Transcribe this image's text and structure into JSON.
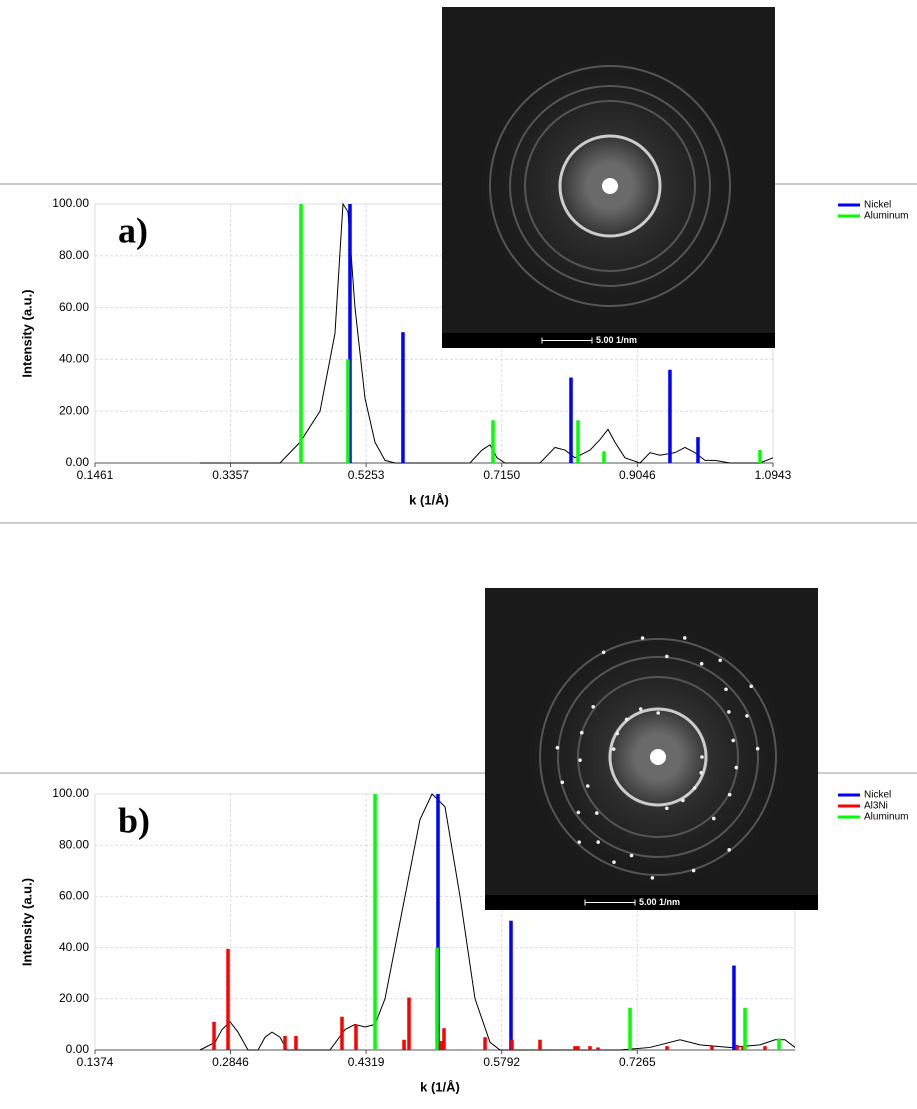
{
  "chart_data": [
    {
      "type": "bar",
      "panel_label": "a)",
      "xlabel": "k (1/Å)",
      "ylabel": "Intensity (a.u.)",
      "xlim": [
        0.1461,
        1.0943
      ],
      "ylim": [
        0,
        100
      ],
      "xticks": [
        0.1461,
        0.3357,
        0.5253,
        {
          "value": 0.715,
          "label": "0.7150"
        },
        0.9046,
        1.0943
      ],
      "yticks": [
        {
          "value": 0,
          "label": "0.00"
        },
        {
          "value": 20,
          "label": "20.00"
        },
        {
          "value": 40,
          "label": "40.00"
        },
        {
          "value": 60,
          "label": "60.00"
        },
        {
          "value": 80,
          "label": "80.00"
        },
        {
          "value": 100,
          "label": "100.00"
        }
      ],
      "grid": true,
      "legend": "upper right",
      "series": [
        {
          "name": "Nickel",
          "color": "#0000ff",
          "x": [
            0.5027,
            0.5768,
            0.8118,
            0.9502,
            0.9894
          ],
          "values": [
            100,
            50.5,
            33,
            36,
            10
          ]
        },
        {
          "name": "Aluminum",
          "color": "#00ff00",
          "x": [
            0.4342,
            0.4999,
            0.7027,
            0.8216,
            0.8579,
            1.0761
          ],
          "values": [
            100,
            40,
            16.5,
            16.5,
            4.5,
            5
          ]
        }
      ],
      "profile": {
        "color": "#000000",
        "x": [
          0.2929,
          0.4048,
          0.4328,
          0.4608,
          0.4817,
          0.4929,
          0.4999,
          0.5097,
          0.5237,
          0.5377,
          0.5517,
          0.5657,
          0.6705,
          0.6873,
          0.6985,
          0.7083,
          0.7195,
          0.7684,
          0.7894,
          0.8034,
          0.8174,
          0.8384,
          0.8523,
          0.8635,
          0.8733,
          0.8873,
          0.9083,
          0.9223,
          0.9362,
          0.9572,
          0.9712,
          0.9852,
          0.9992,
          1.0132,
          1.0341,
          1.0761,
          1.0943
        ],
        "values": [
          0,
          0,
          8,
          20,
          50,
          100,
          97,
          60,
          25,
          8,
          1,
          0,
          0,
          5,
          7,
          2,
          0,
          0,
          6,
          5,
          2,
          5,
          9,
          13,
          8,
          2,
          0,
          4,
          3,
          4,
          6,
          4,
          1,
          1,
          0,
          0,
          2
        ]
      },
      "inset": {
        "scale_label": "5.00 1/nm"
      }
    },
    {
      "type": "bar",
      "panel_label": "b)",
      "xlabel": "k (1/Å)",
      "ylabel": "Intensity (a.u.)",
      "xlim": [
        0.1374,
        0.8978
      ],
      "ylim": [
        0,
        100
      ],
      "xticks": [
        0.1374,
        0.2846,
        0.4319,
        0.5792,
        0.7265
      ],
      "yticks": [
        {
          "value": 0,
          "label": "0.00"
        },
        {
          "value": 20,
          "label": "20.00"
        },
        {
          "value": 40,
          "label": "40.00"
        },
        {
          "value": 60,
          "label": "60.00"
        },
        {
          "value": 80,
          "label": "80.00"
        },
        {
          "value": 100,
          "label": "100.00"
        }
      ],
      "grid": true,
      "legend": "upper right",
      "series": [
        {
          "name": "Nickel",
          "color": "#0000ff",
          "x": [
            0.51,
            0.5893,
            0.8315
          ],
          "values": [
            100,
            50.5,
            33
          ]
        },
        {
          "name": "Al3Ni",
          "color": "#ff0000",
          "x": [
            0.2667,
            0.2819,
            0.3438,
            0.3557,
            0.4057,
            0.4209,
            0.4731,
            0.4785,
            0.5133,
            0.5165,
            0.5611,
            0.5904,
            0.6208,
            0.6588,
            0.6621,
            0.6751,
            0.6838,
            0.7588,
            0.8076,
            0.8348,
            0.8413,
            0.8652
          ],
          "values": [
            11,
            39.5,
            5.5,
            5.5,
            13,
            10,
            4,
            20.5,
            3.5,
            8.5,
            5,
            4,
            4,
            1.5,
            1.5,
            1.5,
            1,
            1.5,
            1.5,
            2,
            1.5,
            1.5
          ]
        },
        {
          "name": "Aluminum",
          "color": "#00ff00",
          "x": [
            0.4416,
            0.5089,
            0.7186,
            0.8435,
            0.8804
          ],
          "values": [
            100,
            40,
            16.5,
            16.5,
            4.5
          ]
        }
      ],
      "profile": {
        "color": "#000000",
        "x": [
          0.2515,
          0.2678,
          0.2754,
          0.2841,
          0.2927,
          0.3036,
          0.3145,
          0.3221,
          0.3297,
          0.3384,
          0.346,
          0.3927,
          0.409,
          0.4198,
          0.4307,
          0.4416,
          0.4524,
          0.4687,
          0.4904,
          0.5035,
          0.5176,
          0.5339,
          0.5502,
          0.5665,
          0.5774,
          0.7077,
          0.7403,
          0.7729,
          0.7946,
          0.8272,
          0.8598,
          0.8761,
          0.8869,
          0.8978
        ],
        "values": [
          0,
          3,
          8,
          11,
          7,
          0,
          0,
          5,
          7,
          5,
          0,
          0,
          8,
          10,
          9,
          10,
          20,
          50,
          90,
          100,
          95,
          60,
          20,
          3,
          0,
          0,
          1,
          4,
          2,
          1,
          2,
          4,
          4,
          1
        ]
      },
      "inset": {
        "scale_label": "5.00 1/nm"
      }
    }
  ]
}
